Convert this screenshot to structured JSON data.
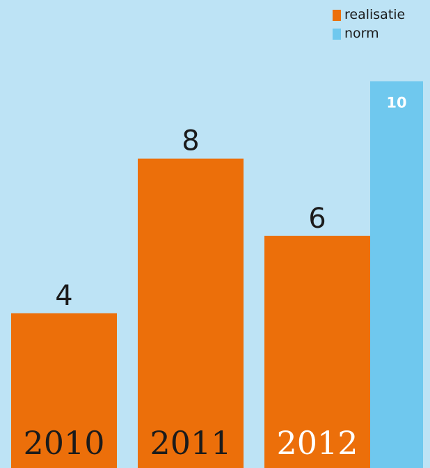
{
  "colors": {
    "background": "#bde3f5",
    "realisatie": "#ec6f0a",
    "norm": "#6fc8ee",
    "value_label": "#1b1b1b",
    "norm_label": "#ffffff"
  },
  "legend": {
    "items": [
      {
        "label": "realisatie",
        "color": "#ec6f0a"
      },
      {
        "label": "norm",
        "color": "#6fc8ee"
      }
    ]
  },
  "chart_data": {
    "type": "bar",
    "categories": [
      "2010",
      "2011",
      "2012"
    ],
    "series": [
      {
        "name": "realisatie",
        "values": [
          4,
          8,
          6
        ]
      },
      {
        "name": "norm",
        "values": [
          null,
          null,
          10
        ]
      }
    ],
    "data_labels": [
      "4",
      "8",
      "6",
      "10"
    ],
    "ylim": [
      0,
      12.1
    ],
    "grid": false,
    "legend_position": "top-right",
    "title": "",
    "xlabel": "",
    "ylabel": ""
  }
}
